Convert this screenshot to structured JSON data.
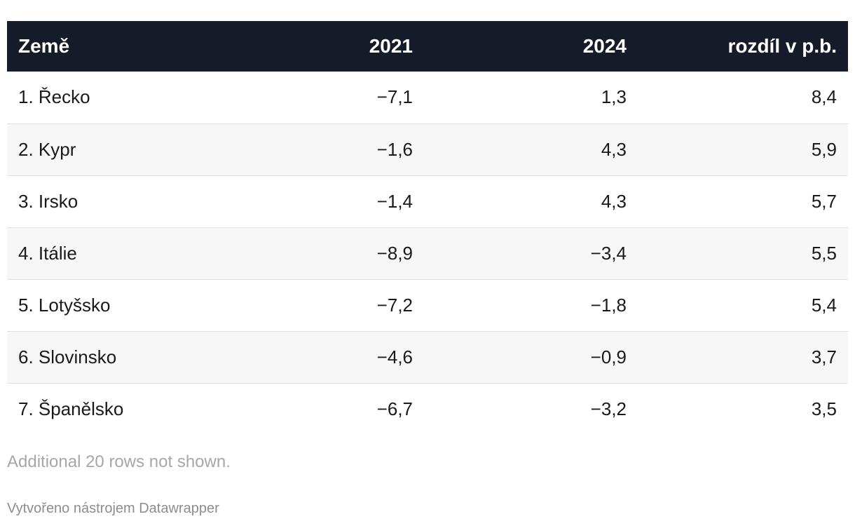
{
  "chart_data": {
    "type": "table",
    "columns": [
      "Země",
      "2021",
      "2024",
      "rozdíl v p.b."
    ],
    "rows": [
      [
        "1. Řecko",
        "−7,1",
        "1,3",
        "8,4"
      ],
      [
        "2. Kypr",
        "−1,6",
        "4,3",
        "5,9"
      ],
      [
        "3. Irsko",
        "−1,4",
        "4,3",
        "5,7"
      ],
      [
        "4. Itálie",
        "−8,9",
        "−3,4",
        "5,5"
      ],
      [
        "5. Lotyšsko",
        "−7,2",
        "−1,8",
        "5,4"
      ],
      [
        "6. Slovinsko",
        "−4,6",
        "−0,9",
        "3,7"
      ],
      [
        "7. Španělsko",
        "−6,7",
        "−3,2",
        "3,5"
      ]
    ],
    "note": "Additional 20 rows not shown.",
    "credit": "Vytvořeno nástrojem Datawrapper"
  },
  "colors": {
    "header_bg": "#151b29",
    "header_text": "#ffffff",
    "stripe": "#f7f7f7",
    "note_text": "#a7a7a7"
  }
}
